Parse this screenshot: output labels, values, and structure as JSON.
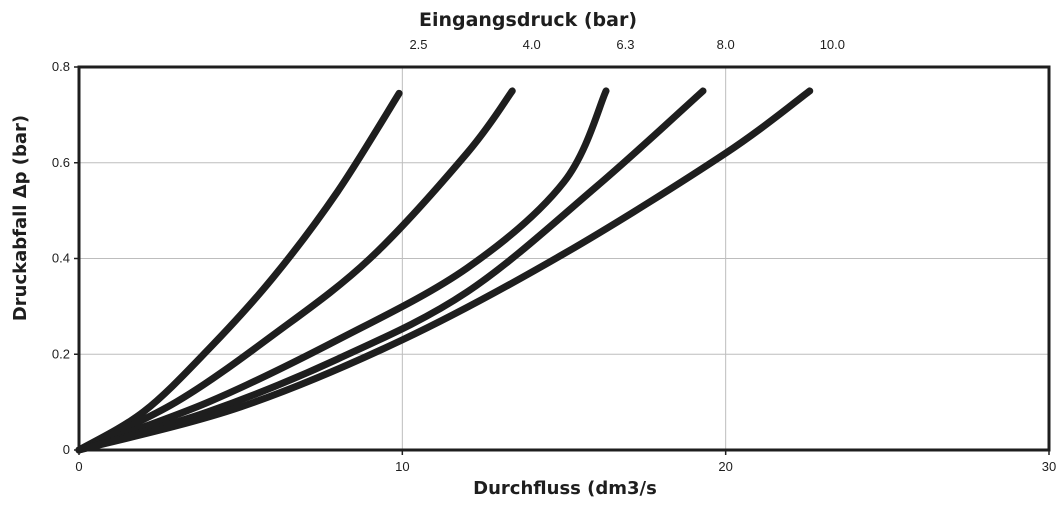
{
  "chart_data": {
    "type": "line",
    "title": "Eingangsdruck (bar)",
    "xlabel": "Durchfluss (dm3/s",
    "ylabel": "Druckabfall Δp (bar)",
    "xlim": [
      0,
      30
    ],
    "ylim": [
      0,
      0.8
    ],
    "x_ticks": [
      0,
      10,
      20,
      30
    ],
    "x_tick_labels": [
      "0",
      "10",
      "20",
      "30"
    ],
    "y_ticks": [
      0,
      0.2,
      0.4,
      0.6,
      0.8
    ],
    "y_tick_labels": [
      "0",
      "0.2",
      "0.4",
      "0.6",
      "0.8"
    ],
    "grid": true,
    "series": [
      {
        "name": "2.5",
        "label_x": 10.5,
        "x": [
          0,
          2,
          4,
          6,
          8,
          9.9
        ],
        "y": [
          0,
          0.08,
          0.21,
          0.36,
          0.54,
          0.745
        ]
      },
      {
        "name": "4.0",
        "label_x": 14.0,
        "x": [
          0,
          3,
          6,
          9,
          12,
          13.4
        ],
        "y": [
          0,
          0.1,
          0.24,
          0.4,
          0.62,
          0.75
        ]
      },
      {
        "name": "6.3",
        "label_x": 16.9,
        "x": [
          0,
          4,
          8,
          12,
          15,
          16.3
        ],
        "y": [
          0,
          0.1,
          0.23,
          0.38,
          0.56,
          0.75
        ]
      },
      {
        "name": "8.0",
        "label_x": 20.0,
        "x": [
          0,
          4,
          8,
          12,
          16,
          19.3
        ],
        "y": [
          0,
          0.08,
          0.19,
          0.33,
          0.55,
          0.75
        ]
      },
      {
        "name": "10.0",
        "label_x": 23.3,
        "x": [
          0,
          5,
          10,
          15,
          20,
          22.6
        ],
        "y": [
          0,
          0.09,
          0.23,
          0.41,
          0.62,
          0.75
        ]
      }
    ]
  }
}
